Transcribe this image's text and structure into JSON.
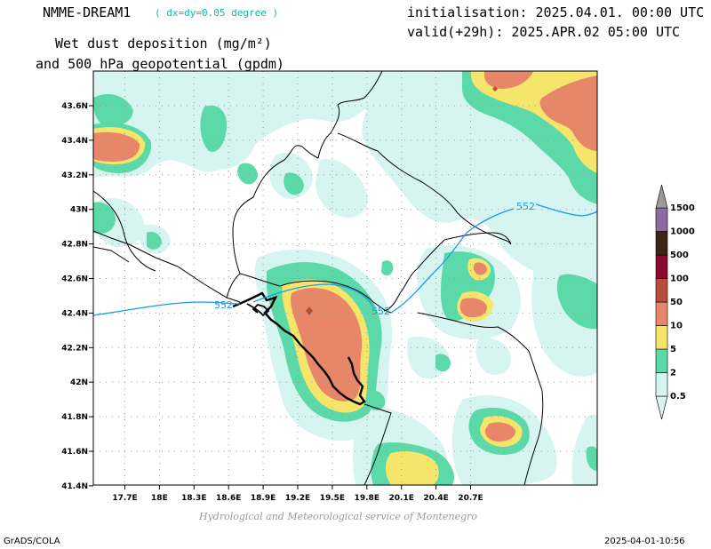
{
  "header": {
    "model_name": "NMME-DREAM1",
    "model_resolution": "( dx=dy=0.05 degree )",
    "initialisation": "initialisation: 2025.04.01. 00:00 UTC",
    "valid": "valid(+29h): 2025.APR.02 05:00 UTC",
    "title_line1": "Wet dust deposition (mg/m²)",
    "title_line2": "and 500 hPa geopotential (gpdm)"
  },
  "map": {
    "lon_ticks": [
      "17.7E",
      "18E",
      "18.3E",
      "18.6E",
      "18.9E",
      "19.2E",
      "19.5E",
      "19.8E",
      "20.1E",
      "20.4E",
      "20.7E"
    ],
    "lat_ticks": [
      "43.6N",
      "43.4N",
      "43.2N",
      "43N",
      "42.8N",
      "42.6N",
      "42.4N",
      "42.2N",
      "42N",
      "41.8N",
      "41.6N",
      "41.4N"
    ],
    "contour_labels": [
      "552",
      "552",
      "552"
    ]
  },
  "legend": {
    "levels": [
      "0.5",
      "2",
      "5",
      "10",
      "50",
      "100",
      "500",
      "1000",
      "1500"
    ],
    "colors": [
      "#d6f5f0",
      "#5cd9a8",
      "#f5e56b",
      "#e8866a",
      "#b84c3a",
      "#8b0a2e",
      "#3d2414",
      "#8e6aa0",
      "#9a9a9a"
    ]
  },
  "palette": {
    "c05": "#d6f5f0",
    "c2": "#5cd9a8",
    "c5": "#f5e56b",
    "c10": "#e8866a",
    "c50": "#b84c3a",
    "contour": "#1a9be6"
  },
  "footer": {
    "credit": "Hydrological and Meteorological service of Montenegro",
    "software": "GrADS/COLA",
    "timestamp": "2025-04-01-10:56"
  }
}
